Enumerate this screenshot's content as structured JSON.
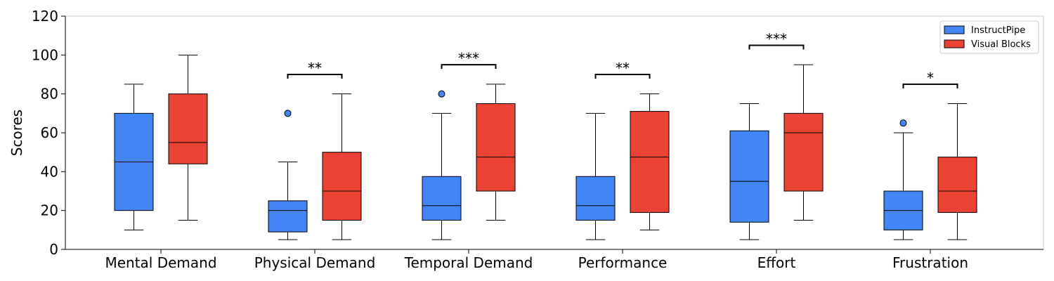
{
  "chart_data": {
    "type": "boxplot",
    "title": "",
    "xlabel": "",
    "ylabel": "Scores",
    "ylim": [
      0,
      120
    ],
    "yticks": [
      0,
      20,
      40,
      60,
      80,
      100,
      120
    ],
    "categories": [
      "Mental Demand",
      "Physical Demand",
      "Temporal Demand",
      "Performance",
      "Effort",
      "Frustration"
    ],
    "legend_position": "top-right",
    "series": [
      {
        "name": "InstructPipe",
        "color": "#4285F4",
        "boxes": [
          {
            "whisker_low": 10,
            "q1": 20,
            "median": 45,
            "q3": 70,
            "whisker_high": 85,
            "outliers": []
          },
          {
            "whisker_low": 5,
            "q1": 9,
            "median": 20,
            "q3": 25,
            "whisker_high": 45,
            "outliers": [
              70
            ]
          },
          {
            "whisker_low": 5,
            "q1": 15,
            "median": 22.5,
            "q3": 37.5,
            "whisker_high": 70,
            "outliers": [
              80
            ]
          },
          {
            "whisker_low": 5,
            "q1": 15,
            "median": 22.5,
            "q3": 37.5,
            "whisker_high": 70,
            "outliers": []
          },
          {
            "whisker_low": 5,
            "q1": 14,
            "median": 35,
            "q3": 61,
            "whisker_high": 75,
            "outliers": []
          },
          {
            "whisker_low": 5,
            "q1": 10,
            "median": 20,
            "q3": 30,
            "whisker_high": 60,
            "outliers": [
              65
            ]
          }
        ]
      },
      {
        "name": "Visual Blocks",
        "color": "#EA4335",
        "boxes": [
          {
            "whisker_low": 15,
            "q1": 44,
            "median": 55,
            "q3": 80,
            "whisker_high": 100,
            "outliers": []
          },
          {
            "whisker_low": 5,
            "q1": 15,
            "median": 30,
            "q3": 50,
            "whisker_high": 80,
            "outliers": []
          },
          {
            "whisker_low": 15,
            "q1": 30,
            "median": 47.5,
            "q3": 75,
            "whisker_high": 85,
            "outliers": []
          },
          {
            "whisker_low": 10,
            "q1": 19,
            "median": 47.5,
            "q3": 71,
            "whisker_high": 80,
            "outliers": []
          },
          {
            "whisker_low": 15,
            "q1": 30,
            "median": 60,
            "q3": 70,
            "whisker_high": 95,
            "outliers": []
          },
          {
            "whisker_low": 5,
            "q1": 19,
            "median": 30,
            "q3": 47.5,
            "whisker_high": 75,
            "outliers": []
          }
        ]
      }
    ],
    "significance": [
      {
        "category": "Mental Demand",
        "label": "",
        "y": null
      },
      {
        "category": "Physical Demand",
        "label": "**",
        "y": 90
      },
      {
        "category": "Temporal Demand",
        "label": "***",
        "y": 95
      },
      {
        "category": "Performance",
        "label": "**",
        "y": 90
      },
      {
        "category": "Effort",
        "label": "***",
        "y": 105
      },
      {
        "category": "Frustration",
        "label": "*",
        "y": 85
      }
    ]
  }
}
